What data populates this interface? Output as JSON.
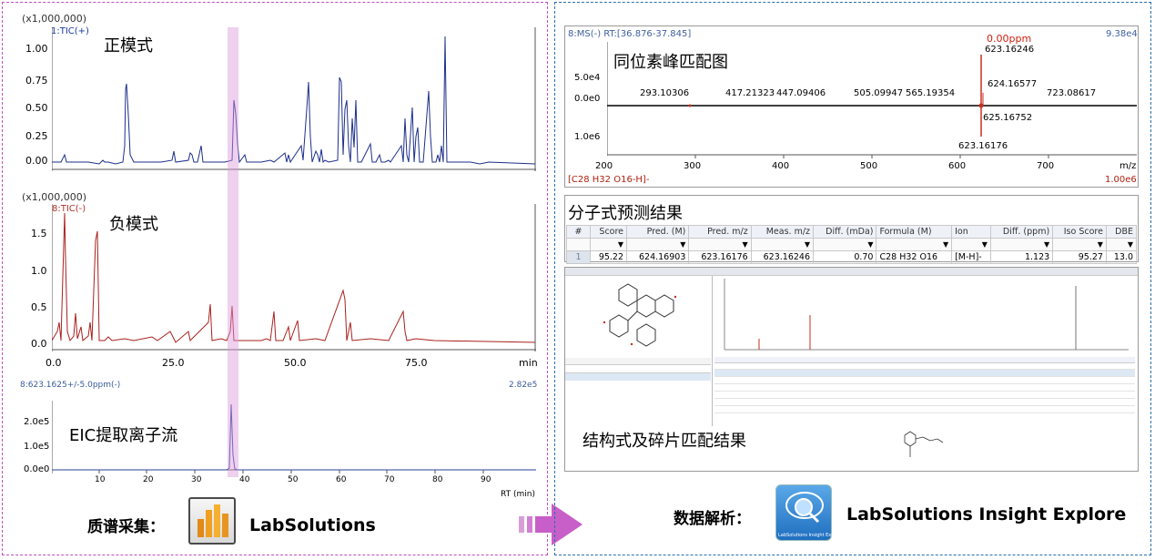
{
  "left": {
    "tic_pos": {
      "scale": "(x1,000,000)",
      "trace": "1:TIC(+)",
      "ytick_labels": [
        "1.00",
        "0.75",
        "0.50",
        "0.25",
        "0.00"
      ],
      "mode_label": "正模式"
    },
    "tic_neg": {
      "scale": "(x1,000,000)",
      "trace": "8:TIC(-)",
      "ytick_labels": [
        "1.5",
        "1.0",
        "0.5",
        "0.0"
      ],
      "mode_label": "负模式",
      "xtick_labels": [
        "0.0",
        "25.0",
        "50.0",
        "75.0",
        "min"
      ]
    },
    "eic": {
      "trace": "8:623.1625+/-5.0ppm(-)",
      "max_intensity": "2.82e5",
      "ytick_labels": [
        "2.0e5",
        "1.0e5",
        "0.0e0"
      ],
      "xtick_labels": [
        "10",
        "20",
        "30",
        "40",
        "50",
        "60",
        "70",
        "80",
        "90"
      ],
      "xaxis_label": "RT (min)",
      "title": "EIC提取离子流"
    },
    "footer_label": "质谱采集：",
    "app_name": "LabSolutions"
  },
  "right": {
    "ms": {
      "trace": "8:MS(-) RT:[36.876-37.845]",
      "max_intensity": "9.38e4",
      "title": "同位素峰匹配图",
      "ppm_label": "0.00ppm",
      "ytick_labels": [
        "5.0e4",
        "0.0e0",
        "1.0e6"
      ],
      "xtick_labels": [
        "200",
        "300",
        "400",
        "500",
        "600",
        "700"
      ],
      "xaxis_label": "m/z",
      "formula_label": "[C28 H32 O16-H]-",
      "lower_max": "1.00e6",
      "peak_labels": {
        "p623_16246": "623.16246",
        "p624_16577": "624.16577",
        "p293_10306": "293.10306",
        "p417_21323": "417.21323",
        "p447_09406": "447.09406",
        "p505_09947": "505.09947",
        "p565_19354": "565.19354",
        "p723_08617": "723.08617",
        "p625_16752": "625.16752",
        "p623_16176": "623.16176"
      }
    },
    "formula": {
      "title": "分子式预测结果",
      "headers": [
        "#",
        "Score",
        "Pred. (M)",
        "Pred. m/z",
        "Meas. m/z",
        "Diff. (mDa)",
        "Formula (M)",
        "Ion",
        "Diff. (ppm)",
        "Iso Score",
        "DBE"
      ],
      "row": [
        "1",
        "95.22",
        "624.16903",
        "623.16176",
        "623.16246",
        "0.70",
        "C28 H32 O16",
        "[M-H]-",
        "1.123",
        "95.27",
        "13.0"
      ]
    },
    "structure": {
      "title": "结构式及碎片匹配结果"
    },
    "footer_label": "数据解析：",
    "app_name": "LabSolutions Insight Explore",
    "app_icon_caption": "LabSolutions Insight Explorer"
  }
}
